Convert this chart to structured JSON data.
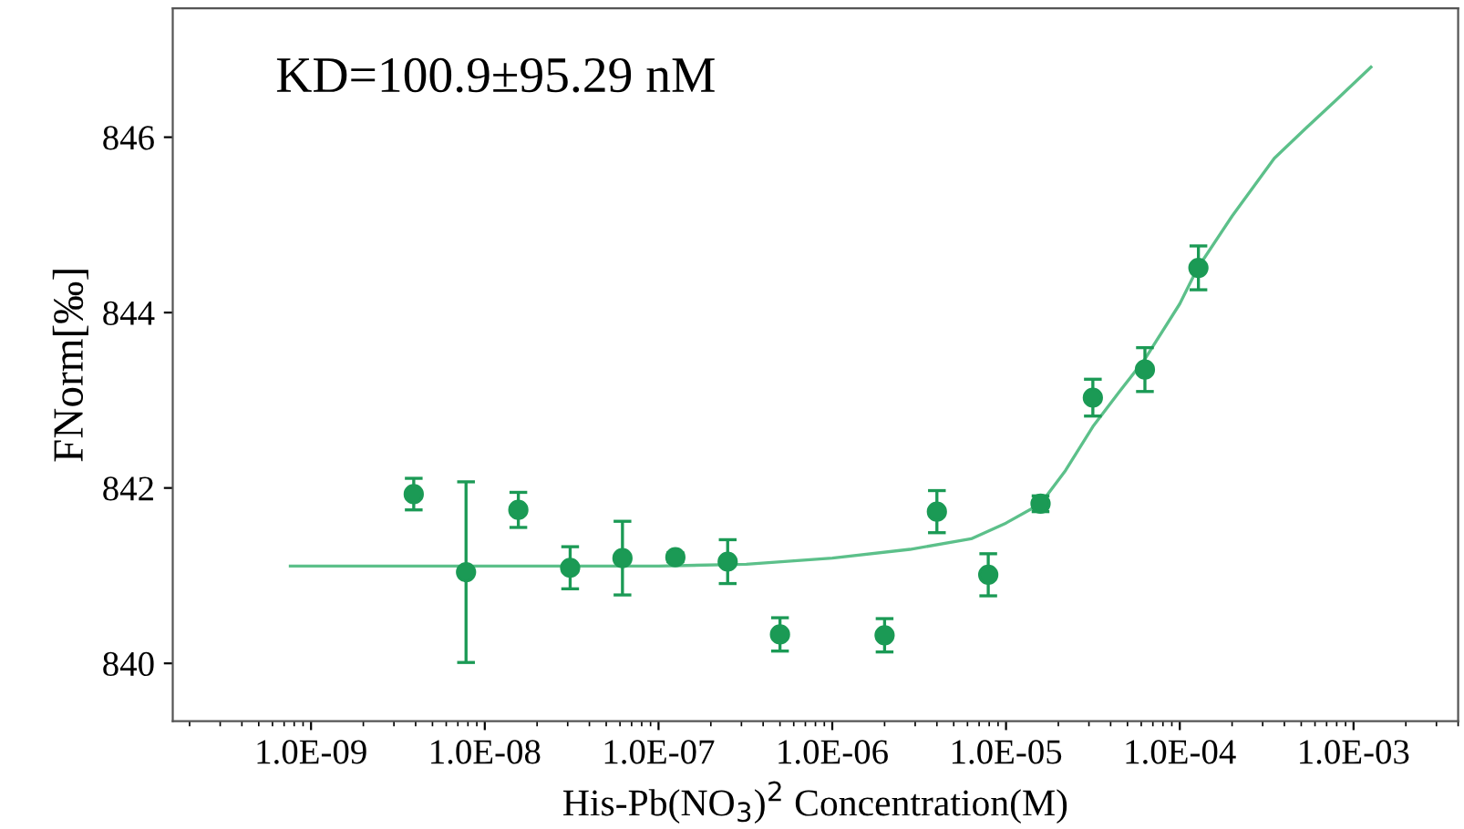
{
  "chart_data": {
    "type": "scatter",
    "xlabel": "His-Pb(NO$_{3}$)$^{2}$ Concentration(M)",
    "ylabel": "FNorm[‰]",
    "annotations": [
      "KD=100.9±95.29 nM"
    ],
    "log": "x",
    "grid": false,
    "legend": false,
    "marker": "circle",
    "xlim": [
      1.6e-10,
      0.004
    ],
    "ylim": [
      839.34,
      847.47
    ],
    "xticks": [
      {
        "value": 1e-09,
        "label": "1.0E-09"
      },
      {
        "value": 1e-08,
        "label": "1.0E-08"
      },
      {
        "value": 1e-07,
        "label": "1.0E-07"
      },
      {
        "value": 1e-06,
        "label": "1.0E-06"
      },
      {
        "value": 1e-05,
        "label": "1.0E-05"
      },
      {
        "value": 0.0001,
        "label": "1.0E-04"
      },
      {
        "value": 0.001,
        "label": "1.0E-03"
      }
    ],
    "yticks": [
      840,
      842,
      844,
      846
    ],
    "series": [
      {
        "color": "#1b9a55",
        "x": [
          3.9e-09,
          7.8e-09,
          1.56e-08,
          3.1e-08,
          6.2e-08,
          1.25e-07,
          2.5e-07,
          5e-07,
          2e-06,
          4e-06,
          7.9e-06,
          1.58e-05,
          3.16e-05,
          6.3e-05,
          0.000128
        ],
        "values": [
          841.93,
          841.04,
          841.75,
          841.09,
          841.2,
          841.21,
          841.16,
          840.33,
          840.32,
          841.73,
          841.01,
          841.82,
          843.03,
          843.35,
          844.51
        ],
        "errors": [
          0.18,
          1.03,
          0.2,
          0.24,
          0.42,
          0.05,
          0.25,
          0.19,
          0.19,
          0.24,
          0.24,
          0.09,
          0.21,
          0.25,
          0.25
        ]
      },
      {
        "type": "line",
        "color": "#5cc08a",
        "marker": "none",
        "x": [
          7.6e-10,
          1e-08,
          1e-07,
          3.2e-07,
          1e-06,
          2.8e-06,
          6.3e-06,
          1e-05,
          1.58e-05,
          2.2e-05,
          3.16e-05,
          4.5e-05,
          6.3e-05,
          0.0001,
          0.000126,
          0.0002,
          0.00035,
          0.00053,
          0.00079,
          0.00126
        ],
        "values": [
          841.11,
          841.11,
          841.11,
          841.13,
          841.2,
          841.3,
          841.42,
          841.6,
          841.82,
          842.2,
          842.7,
          843.1,
          843.47,
          844.1,
          844.5,
          845.1,
          845.76,
          846.1,
          846.42,
          846.8
        ]
      }
    ]
  }
}
